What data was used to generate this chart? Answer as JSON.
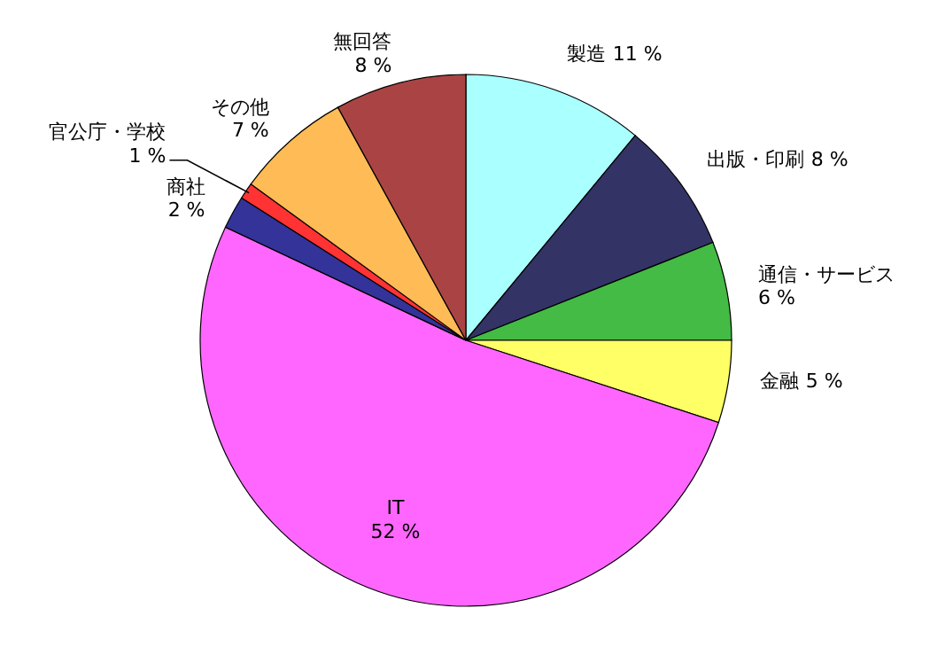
{
  "chart_data": {
    "type": "pie",
    "categories": [
      "製造",
      "出版・印刷",
      "通信・サービス",
      "金融",
      "IT",
      "商社",
      "官公庁・学校",
      "その他",
      "無回答"
    ],
    "values": [
      11,
      8,
      6,
      5,
      52,
      2,
      1,
      7,
      8
    ],
    "value_labels": [
      "11 %",
      "8 %",
      "6 %",
      "5 %",
      "52 %",
      "2 %",
      "1 %",
      "7 %",
      "8 %"
    ],
    "colors": [
      "#aaffff",
      "#333366",
      "#44bb44",
      "#ffff66",
      "#ff66ff",
      "#333399",
      "#ff3333",
      "#ffbb55",
      "#aa4444"
    ]
  }
}
